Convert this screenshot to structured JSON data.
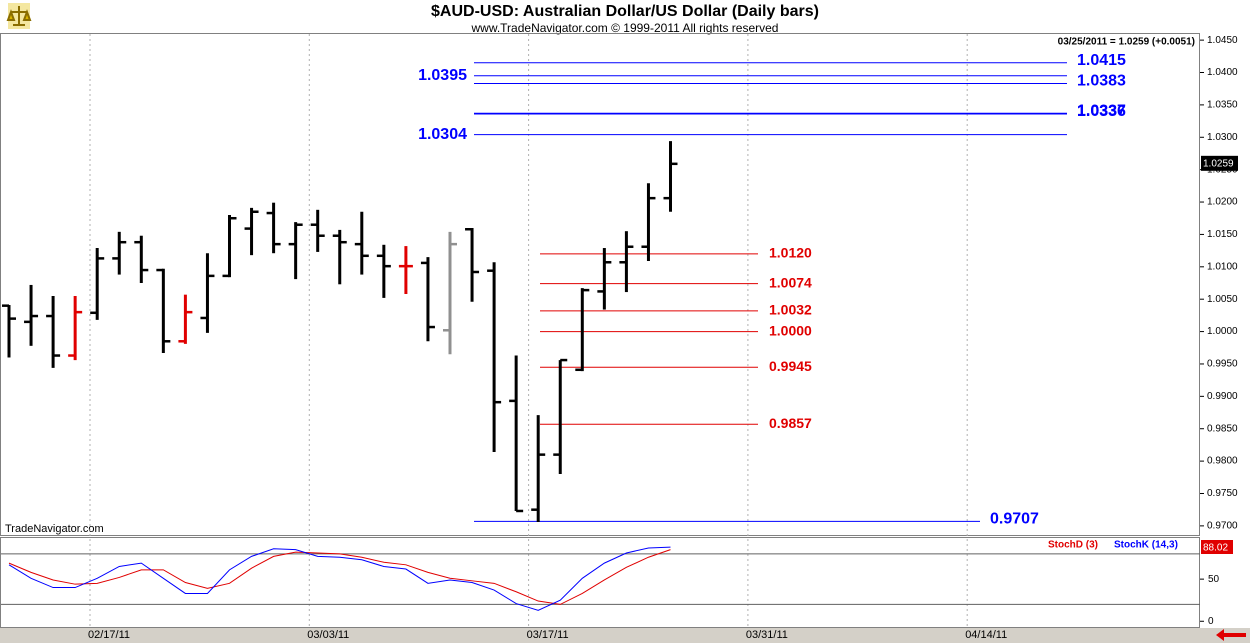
{
  "title": "$AUD-USD:  Australian Dollar/US Dollar  (Daily bars)",
  "subtitle": "www.TradeNavigator.com © 1999-2011 All rights reserved",
  "status": "03/25/2011 = 1.0259 (+0.0051)",
  "watermark": "TradeNavigator.com",
  "chart_data": [
    {
      "type": "ohlc",
      "ylim": [
        0.9689,
        1.0461
      ],
      "yticks": [
        {
          "value": 0.97,
          "label": "0.9700"
        },
        {
          "value": 0.975,
          "label": "0.9750"
        },
        {
          "value": 0.98,
          "label": "0.9800"
        },
        {
          "value": 0.985,
          "label": "0.9850"
        },
        {
          "value": 0.99,
          "label": "0.9900"
        },
        {
          "value": 0.995,
          "label": "0.9950"
        },
        {
          "value": 1,
          "label": "1.0000"
        },
        {
          "value": 1.005,
          "label": "1.0050"
        },
        {
          "value": 1.01,
          "label": "1.0100"
        },
        {
          "value": 1.015,
          "label": "1.0150"
        },
        {
          "value": 1.02,
          "label": "1.0200"
        },
        {
          "value": 1.025,
          "label": "1.0250"
        },
        {
          "value": 1.03,
          "label": "1.0300"
        },
        {
          "value": 1.035,
          "label": "1.0350"
        },
        {
          "value": 1.04,
          "label": "1.0400"
        },
        {
          "value": 1.045,
          "label": "1.0450"
        }
      ],
      "x_labels": [
        "02/17/11",
        "03/03/11",
        "03/17/11",
        "03/31/11",
        "04/14/11"
      ],
      "open": [
        1.004,
        1.0015,
        1.0024,
        0.9963,
        1.0029,
        1.0113,
        1.0138,
        1.0095,
        0.9985,
        1.0021,
        1.0086,
        1.0159,
        1.0183,
        1.0135,
        1.0165,
        1.0148,
        1.0135,
        1.0117,
        1.0101,
        1.0106,
        1.0002,
        1.0158,
        1.0094,
        0.9893,
        0.9725,
        0.981,
        0.9941,
        1.0062,
        1.0107,
        1.0131,
        1.0206
      ],
      "high": [
        1.0041,
        1.0072,
        1.0055,
        1.0055,
        1.0129,
        1.0154,
        1.0148,
        1.0097,
        1.0057,
        1.0121,
        1.018,
        1.0191,
        1.0199,
        1.0169,
        1.0188,
        1.0157,
        1.0185,
        1.0134,
        1.0132,
        1.0115,
        1.0154,
        1.016,
        1.0107,
        0.9963,
        0.9871,
        0.9956,
        1.0067,
        1.0129,
        1.0155,
        1.0229,
        1.0294
      ],
      "low": [
        0.996,
        0.9978,
        0.9944,
        0.9956,
        1.0018,
        1.0088,
        1.0075,
        0.9967,
        0.9981,
        0.9998,
        1.0084,
        1.0118,
        1.0121,
        1.0081,
        1.0123,
        1.0073,
        1.0088,
        1.0052,
        1.0058,
        0.9985,
        0.9965,
        1.0046,
        0.9814,
        0.9723,
        0.9706,
        0.978,
        0.9939,
        1.0034,
        1.0061,
        1.0109,
        1.0185
      ],
      "close": [
        1.002,
        1.0024,
        0.9963,
        1.003,
        1.0113,
        1.0138,
        1.0095,
        0.9985,
        1.003,
        1.0086,
        1.0175,
        1.0185,
        1.0135,
        1.0165,
        1.0148,
        1.0138,
        1.0117,
        1.0101,
        1.0101,
        1.0007,
        1.0135,
        1.0092,
        0.9891,
        0.9723,
        0.981,
        0.9956,
        1.0064,
        1.0107,
        1.0131,
        1.0206,
        1.0259
      ],
      "colors": [
        "#000000",
        "#000000",
        "#000000",
        "#e00000",
        "#000000",
        "#000000",
        "#000000",
        "#000000",
        "#e00000",
        "#000000",
        "#000000",
        "#000000",
        "#000000",
        "#000000",
        "#000000",
        "#000000",
        "#000000",
        "#000000",
        "#e00000",
        "#000000",
        "#909090",
        "#000000",
        "#000000",
        "#000000",
        "#000000",
        "#000000",
        "#000000",
        "#000000",
        "#000000",
        "#000000",
        "#000000"
      ],
      "blue_lines": {
        "color": "#0000ff",
        "values": [
          1.0415,
          1.0395,
          1.0383,
          1.0337,
          1.0336,
          1.0304,
          0.9707
        ],
        "sides": [
          "right",
          "left",
          "right",
          "right",
          "right",
          "left",
          "right"
        ]
      },
      "red_lines": {
        "color": "#e00000",
        "values": [
          1.012,
          1.0074,
          1.0032,
          1,
          0.9945,
          0.9857
        ],
        "value_labels": [
          "1.0120",
          "1.0074",
          "1.0032",
          "1.0000",
          "0.9945",
          "0.9857"
        ]
      }
    },
    {
      "type": "line",
      "ylim": [
        -8,
        100
      ],
      "yticks": [
        0,
        50
      ],
      "levels": [
        20,
        80
      ],
      "series": [
        {
          "name": "StochD (3)",
          "color": "#e00000",
          "values": [
            69,
            58,
            49,
            44,
            45,
            52,
            61,
            61,
            46,
            39,
            45,
            63,
            77,
            82,
            81,
            80,
            76,
            70,
            67,
            58,
            51,
            48,
            45,
            35,
            24,
            20,
            33,
            49,
            64,
            76,
            85
          ]
        },
        {
          "name": "StochK (14,3)",
          "color": "#0000ff",
          "values": [
            67,
            51,
            40,
            40,
            51,
            65,
            69,
            51,
            33,
            33,
            61,
            77,
            86,
            85,
            77,
            76,
            73,
            65,
            62,
            45,
            49,
            46,
            37,
            21,
            13,
            25,
            51,
            69,
            81,
            87,
            88.02
          ]
        }
      ]
    }
  ]
}
